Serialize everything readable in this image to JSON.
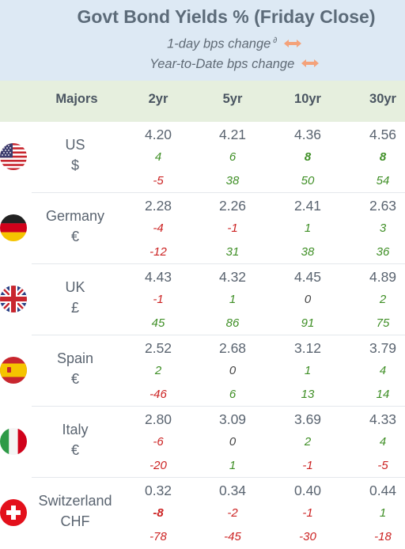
{
  "title": "Govt Bond Yields %  (Friday Close)",
  "legend": {
    "daily": "1-day bps change",
    "daily_sup": "∂",
    "ytd": "Year-to-Date bps change"
  },
  "colors": {
    "positive": "#3f8f26",
    "negative": "#cc2222",
    "header_bg": "#dde9f4",
    "colhead_bg": "#e6efde",
    "arrow": "#f4a27a"
  },
  "columns": [
    "Majors",
    "2yr",
    "5yr",
    "10yr",
    "30yr"
  ],
  "rows": [
    {
      "country": "US",
      "currency": "$",
      "flag": "us-flag-icon",
      "yields": [
        "4.20",
        "4.21",
        "4.36",
        "4.56"
      ],
      "daily": [
        "4",
        "6",
        "8",
        "8"
      ],
      "daily_bold": [
        false,
        false,
        true,
        true
      ],
      "ytd": [
        "-5",
        "38",
        "50",
        "54"
      ]
    },
    {
      "country": "Germany",
      "currency": "€",
      "flag": "germany-flag-icon",
      "yields": [
        "2.28",
        "2.26",
        "2.41",
        "2.63"
      ],
      "daily": [
        "-4",
        "-1",
        "1",
        "3"
      ],
      "daily_bold": [
        false,
        false,
        false,
        false
      ],
      "ytd": [
        "-12",
        "31",
        "38",
        "36"
      ]
    },
    {
      "country": "UK",
      "currency": "£",
      "flag": "uk-flag-icon",
      "yields": [
        "4.43",
        "4.32",
        "4.45",
        "4.89"
      ],
      "daily": [
        "-1",
        "1",
        "0",
        "2"
      ],
      "daily_bold": [
        false,
        false,
        false,
        false
      ],
      "ytd": [
        "45",
        "86",
        "91",
        "75"
      ]
    },
    {
      "country": "Spain",
      "currency": "€",
      "flag": "spain-flag-icon",
      "yields": [
        "2.52",
        "2.68",
        "3.12",
        "3.79"
      ],
      "daily": [
        "2",
        "0",
        "1",
        "4"
      ],
      "daily_bold": [
        false,
        false,
        false,
        false
      ],
      "ytd": [
        "-46",
        "6",
        "13",
        "14"
      ]
    },
    {
      "country": "Italy",
      "currency": "€",
      "flag": "italy-flag-icon",
      "yields": [
        "2.80",
        "3.09",
        "3.69",
        "4.33"
      ],
      "daily": [
        "-6",
        "0",
        "2",
        "4"
      ],
      "daily_bold": [
        false,
        false,
        false,
        false
      ],
      "ytd": [
        "-20",
        "1",
        "-1",
        "-5"
      ]
    },
    {
      "country": "Switzerland",
      "currency": "CHF",
      "flag": "switzerland-flag-icon",
      "yields": [
        "0.32",
        "0.34",
        "0.40",
        "0.44"
      ],
      "daily": [
        "-8",
        "-2",
        "-1",
        "1"
      ],
      "daily_bold": [
        true,
        false,
        false,
        false
      ],
      "ytd": [
        "-78",
        "-45",
        "-30",
        "-18"
      ]
    }
  ]
}
